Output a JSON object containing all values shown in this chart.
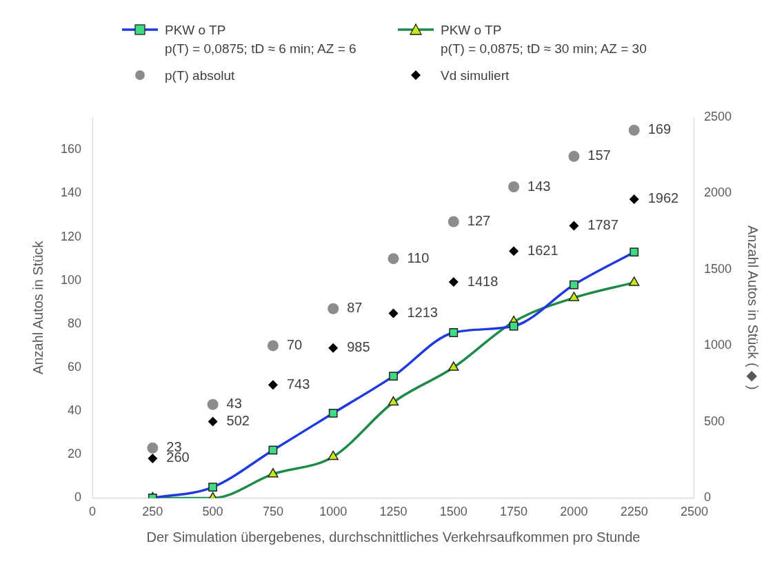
{
  "chart_data": {
    "type": "line",
    "xlabel": "Der Simulation übergebenes, durchschnittliches Verkehrsaufkommen pro Stunde",
    "ylabel": "Anzahl Autos in Stück",
    "y2label": "Anzahl Autos in Stück ( ◆ )",
    "x": [
      250,
      500,
      750,
      1000,
      1250,
      1500,
      1750,
      2000,
      2250
    ],
    "series": [
      {
        "name": "PKW o TP\np(T) = 0,0875; tD ≈ 6 min; AZ = 6",
        "type": "line",
        "color": "#1f3be0",
        "marker": "square",
        "values": [
          0,
          5,
          22,
          39,
          56,
          76,
          79,
          98,
          113
        ]
      },
      {
        "name": "PKW o TP\np(T) = 0,0875; tD ≈ 30 min; AZ = 30",
        "type": "line",
        "color": "#1e8a48",
        "marker": "triangle",
        "values": [
          0,
          0,
          11,
          19,
          44,
          60,
          81,
          92,
          99
        ]
      },
      {
        "name": "p(T) absolut",
        "type": "scatter",
        "color": "#8c8c8c",
        "marker": "circle",
        "values": [
          23,
          43,
          70,
          87,
          110,
          127,
          143,
          157,
          169
        ],
        "value_labels": [
          "23",
          "43",
          "70",
          "87",
          "110",
          "127",
          "143",
          "157",
          "169"
        ]
      },
      {
        "name": "Vd simuliert",
        "type": "scatter",
        "color": "#000000",
        "marker": "diamond",
        "axis": "y2",
        "values": [
          260,
          502,
          743,
          985,
          1213,
          1418,
          1621,
          1787,
          1962
        ],
        "value_labels": [
          "260",
          "502",
          "743",
          "985",
          "1213",
          "1418",
          "1621",
          "1787",
          "1962"
        ]
      }
    ],
    "xlim": [
      0,
      2500
    ],
    "xticks": [
      0,
      250,
      500,
      750,
      1000,
      1250,
      1500,
      1750,
      2000,
      2250,
      2500
    ],
    "ylim": [
      0,
      175
    ],
    "yticks": [
      0,
      20,
      40,
      60,
      80,
      100,
      120,
      140,
      160
    ],
    "y2lim": [
      0,
      2500
    ],
    "y2ticks": [
      0,
      500,
      1000,
      1500,
      2000,
      2500
    ],
    "grid": false,
    "legend": "top"
  }
}
